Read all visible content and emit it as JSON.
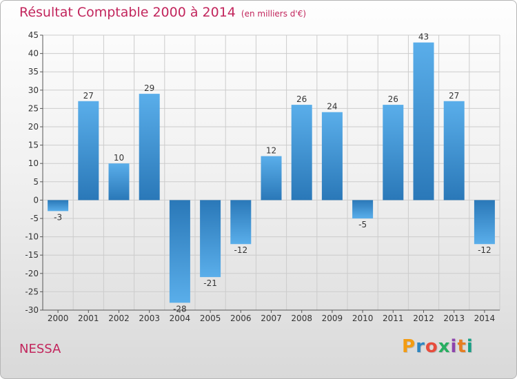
{
  "header": {
    "title": "Résultat Comptable 2000 à 2014",
    "subtitle": "(en milliers d'€)"
  },
  "footer": {
    "commune": "NESSA",
    "logo_text": "Proxiti",
    "logo_colors": [
      "#f39c12",
      "#2e86c1",
      "#e74c3c",
      "#27ae60",
      "#8e44ad",
      "#e67e22",
      "#16a085"
    ]
  },
  "chart_data": {
    "type": "bar",
    "title": "Résultat Comptable 2000 à 2014",
    "subtitle": "(en milliers d'€)",
    "categories": [
      "2000",
      "2001",
      "2002",
      "2003",
      "2004",
      "2005",
      "2006",
      "2007",
      "2008",
      "2009",
      "2010",
      "2011",
      "2012",
      "2013",
      "2014"
    ],
    "values": [
      -3,
      27,
      10,
      29,
      -28,
      -21,
      -12,
      12,
      26,
      24,
      -5,
      26,
      43,
      27,
      -12
    ],
    "ylim": [
      -30,
      45
    ],
    "yticks": [
      -30,
      -25,
      -20,
      -15,
      -10,
      -5,
      0,
      5,
      10,
      15,
      20,
      25,
      30,
      35,
      40,
      45
    ],
    "grid": true,
    "legend": "none",
    "colors": {
      "bar_dark": "#2a78b8",
      "bar_light": "#5aaeea",
      "grid": "#cccccc",
      "axis": "#555555"
    }
  }
}
